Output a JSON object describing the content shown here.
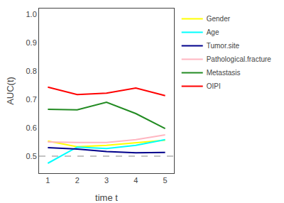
{
  "chart_data": {
    "type": "line",
    "x": [
      1,
      2,
      3,
      4,
      5
    ],
    "series": [
      {
        "name": "Gender",
        "color": "#FFFF00",
        "values": [
          0.553,
          0.533,
          0.538,
          0.547,
          0.556
        ]
      },
      {
        "name": "Age",
        "color": "#00FFFF",
        "values": [
          0.475,
          0.532,
          0.527,
          0.538,
          0.558
        ]
      },
      {
        "name": "Tumor.site",
        "color": "#00008B",
        "values": [
          0.53,
          0.525,
          0.516,
          0.512,
          0.513
        ]
      },
      {
        "name": "Pathological.fracture",
        "color": "#FFB6C1",
        "values": [
          0.55,
          0.548,
          0.548,
          0.558,
          0.575
        ]
      },
      {
        "name": "Metastasis",
        "color": "#228B22",
        "values": [
          0.665,
          0.663,
          0.69,
          0.65,
          0.597
        ]
      },
      {
        "name": "OIPI",
        "color": "#FF0000",
        "values": [
          0.743,
          0.717,
          0.722,
          0.74,
          0.713
        ]
      }
    ],
    "reference_line": 0.5,
    "xlabel": "time t",
    "ylabel": "AUC(t)",
    "xlim": [
      0.7,
      5.3
    ],
    "ylim": [
      0.44,
      1.02
    ],
    "xticks": [
      1,
      2,
      3,
      4,
      5
    ],
    "yticks": [
      0.5,
      0.6,
      0.7,
      0.8,
      0.9,
      {
        "value": 1.0,
        "label": "1.0"
      }
    ],
    "grid": false,
    "legend": "right"
  }
}
